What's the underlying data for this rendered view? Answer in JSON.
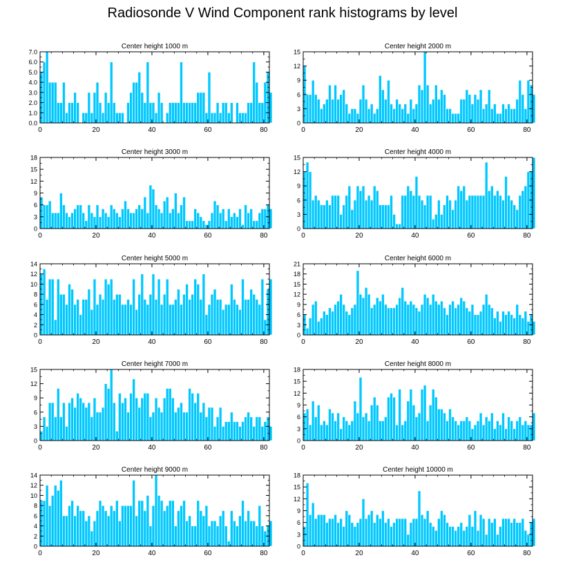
{
  "title": "Radiosonde V Wind Component rank histograms by level",
  "colors": {
    "bar": "#00c8ff",
    "bar_edge": "#ffffff",
    "axis": "#000000",
    "background": "#ffffff"
  },
  "chart_data": [
    {
      "type": "bar",
      "title": "Center height 1000 m",
      "xlim": [
        0,
        82
      ],
      "ylim": [
        0,
        7
      ],
      "xticks": [
        "0",
        "20",
        "40",
        "60",
        "80"
      ],
      "yticks": [
        "0.0",
        "1.0",
        "2.0",
        "3.0",
        "4.0",
        "5.0",
        "6.0",
        "7.0"
      ],
      "values": [
        5,
        6,
        7,
        4,
        4,
        4,
        2,
        2,
        4,
        1,
        2,
        2,
        3,
        2,
        0,
        1,
        1,
        3,
        1,
        3,
        4,
        2,
        1,
        3,
        2,
        6,
        2,
        1,
        1,
        1,
        0,
        2,
        3,
        4,
        4,
        5,
        3,
        2,
        6,
        2,
        2,
        1,
        3,
        2,
        0,
        1,
        2,
        2,
        2,
        2,
        6,
        2,
        2,
        2,
        2,
        2,
        3,
        3,
        3,
        1,
        5,
        1,
        1,
        2,
        1,
        2,
        2,
        1,
        2,
        0,
        2,
        1,
        1,
        1,
        2,
        2,
        6,
        4,
        2,
        2,
        4,
        5,
        3
      ]
    },
    {
      "type": "bar",
      "title": "Center height 2000 m",
      "xlim": [
        0,
        82
      ],
      "ylim": [
        0,
        15
      ],
      "xticks": [
        "0",
        "20",
        "40",
        "60",
        "80"
      ],
      "yticks": [
        "0",
        "3",
        "6",
        "9",
        "12",
        "15"
      ],
      "values": [
        12,
        6,
        6,
        9,
        6,
        5,
        3,
        4,
        5,
        8,
        5,
        8,
        5,
        6,
        7,
        4,
        2,
        3,
        3,
        2,
        5,
        8,
        5,
        3,
        4,
        2,
        3,
        10,
        7,
        5,
        9,
        4,
        3,
        5,
        4,
        3,
        4,
        2,
        5,
        3,
        4,
        8,
        7,
        15,
        8,
        4,
        5,
        8,
        5,
        7,
        6,
        3,
        3,
        2,
        2,
        2,
        5,
        5,
        7,
        6,
        4,
        6,
        5,
        7,
        3,
        4,
        7,
        3,
        4,
        2,
        2,
        4,
        3,
        4,
        3,
        3,
        5,
        9,
        6,
        3,
        9,
        8,
        6
      ]
    },
    {
      "type": "bar",
      "title": "Center height 3000 m",
      "xlim": [
        0,
        82
      ],
      "ylim": [
        0,
        18
      ],
      "xticks": [
        "0",
        "20",
        "40",
        "60",
        "80"
      ],
      "yticks": [
        "0",
        "3",
        "6",
        "9",
        "12",
        "15",
        "18"
      ],
      "values": [
        8,
        6,
        6,
        7,
        4,
        4,
        4,
        9,
        6,
        4,
        3,
        4,
        5,
        6,
        6,
        4,
        2,
        6,
        4,
        3,
        6,
        3,
        5,
        4,
        3,
        6,
        5,
        4,
        3,
        5,
        7,
        5,
        4,
        4,
        5,
        6,
        5,
        8,
        4,
        11,
        10,
        6,
        5,
        4,
        7,
        8,
        4,
        5,
        9,
        4,
        6,
        8,
        2,
        2,
        2,
        5,
        4,
        3,
        2,
        1,
        2,
        4,
        7,
        6,
        4,
        5,
        2,
        5,
        3,
        4,
        3,
        5,
        1,
        6,
        4,
        5,
        2,
        2,
        4,
        5,
        5,
        6,
        5
      ]
    },
    {
      "type": "bar",
      "title": "Center height 4000 m",
      "xlim": [
        0,
        82
      ],
      "ylim": [
        0,
        15
      ],
      "xticks": [
        "0",
        "20",
        "40",
        "60",
        "80"
      ],
      "yticks": [
        "0",
        "3",
        "6",
        "9",
        "12",
        "15"
      ],
      "values": [
        12,
        14,
        12,
        6,
        7,
        6,
        5,
        5,
        6,
        5,
        7,
        7,
        7,
        3,
        5,
        7,
        9,
        4,
        6,
        9,
        8,
        9,
        6,
        7,
        6,
        9,
        8,
        5,
        5,
        5,
        5,
        7,
        3,
        1,
        1,
        7,
        7,
        9,
        8,
        7,
        11,
        7,
        6,
        5,
        7,
        7,
        2,
        3,
        6,
        3,
        5,
        7,
        6,
        4,
        6,
        9,
        8,
        9,
        6,
        7,
        7,
        7,
        7,
        7,
        7,
        14,
        8,
        9,
        7,
        8,
        7,
        6,
        11,
        7,
        6,
        5,
        4,
        7,
        8,
        9,
        12,
        12,
        15
      ]
    },
    {
      "type": "bar",
      "title": "Center height 5000 m",
      "xlim": [
        0,
        82
      ],
      "ylim": [
        0,
        14
      ],
      "xticks": [
        "0",
        "20",
        "40",
        "60",
        "80"
      ],
      "yticks": [
        "0",
        "2",
        "4",
        "6",
        "8",
        "10",
        "12",
        "14"
      ],
      "values": [
        12,
        13,
        7,
        11,
        11,
        3,
        11,
        8,
        8,
        6,
        10,
        9,
        6,
        7,
        4,
        7,
        7,
        9,
        5,
        11,
        6,
        8,
        7,
        11,
        10,
        11,
        7,
        8,
        8,
        6,
        6,
        7,
        6,
        11,
        5,
        8,
        12,
        7,
        6,
        8,
        12,
        7,
        11,
        6,
        8,
        11,
        6,
        6,
        7,
        9,
        6,
        8,
        10,
        7,
        8,
        11,
        10,
        7,
        12,
        4,
        6,
        8,
        9,
        7,
        7,
        5,
        6,
        6,
        10,
        7,
        6,
        5,
        11,
        7,
        7,
        9,
        8,
        7,
        6,
        11,
        3,
        9,
        11
      ]
    },
    {
      "type": "bar",
      "title": "Center height 6000 m",
      "xlim": [
        0,
        82
      ],
      "ylim": [
        0,
        21
      ],
      "xticks": [
        "0",
        "20",
        "40",
        "60",
        "80"
      ],
      "yticks": [
        "0",
        "3",
        "6",
        "9",
        "12",
        "15",
        "18",
        "21"
      ],
      "values": [
        6,
        2,
        5,
        9,
        10,
        4,
        5,
        7,
        6,
        8,
        7,
        9,
        10,
        12,
        9,
        7,
        6,
        8,
        9,
        19,
        12,
        11,
        14,
        12,
        8,
        9,
        11,
        10,
        12,
        9,
        8,
        8,
        8,
        9,
        11,
        14,
        10,
        9,
        10,
        9,
        8,
        7,
        9,
        12,
        11,
        9,
        12,
        10,
        9,
        10,
        8,
        6,
        9,
        10,
        8,
        9,
        11,
        10,
        8,
        7,
        9,
        6,
        6,
        7,
        9,
        12,
        9,
        8,
        5,
        7,
        4,
        7,
        6,
        7,
        6,
        5,
        9,
        6,
        5,
        7,
        4,
        6,
        4
      ]
    },
    {
      "type": "bar",
      "title": "Center height 7000 m",
      "xlim": [
        0,
        82
      ],
      "ylim": [
        0,
        15
      ],
      "xticks": [
        "0",
        "20",
        "40",
        "60",
        "80"
      ],
      "yticks": [
        "0",
        "3",
        "6",
        "9",
        "12",
        "15"
      ],
      "values": [
        2,
        5,
        3,
        8,
        8,
        5,
        11,
        5,
        8,
        3,
        8,
        9,
        7,
        10,
        9,
        8,
        7,
        8,
        5,
        9,
        6,
        6,
        7,
        12,
        11,
        15,
        8,
        2,
        10,
        8,
        9,
        6,
        10,
        13,
        9,
        7,
        9,
        10,
        10,
        5,
        6,
        9,
        7,
        6,
        9,
        11,
        11,
        9,
        6,
        7,
        8,
        6,
        6,
        11,
        10,
        8,
        10,
        6,
        8,
        5,
        7,
        7,
        3,
        5,
        7,
        3,
        4,
        4,
        6,
        4,
        4,
        3,
        4,
        5,
        6,
        5,
        3,
        5,
        5,
        3,
        4,
        5,
        3
      ]
    },
    {
      "type": "bar",
      "title": "Center height 8000 m",
      "xlim": [
        0,
        82
      ],
      "ylim": [
        0,
        18
      ],
      "xticks": [
        "0",
        "20",
        "40",
        "60",
        "80"
      ],
      "yticks": [
        "0",
        "3",
        "6",
        "9",
        "12",
        "15",
        "18"
      ],
      "values": [
        7,
        8,
        4,
        10,
        6,
        9,
        4,
        5,
        4,
        8,
        7,
        5,
        7,
        3,
        6,
        5,
        4,
        5,
        10,
        7,
        16,
        6,
        7,
        5,
        9,
        11,
        9,
        5,
        5,
        6,
        11,
        12,
        11,
        4,
        13,
        4,
        5,
        10,
        13,
        9,
        6,
        7,
        13,
        14,
        5,
        9,
        13,
        11,
        8,
        8,
        7,
        5,
        8,
        6,
        5,
        4,
        5,
        5,
        6,
        5,
        3,
        4,
        5,
        7,
        4,
        6,
        5,
        7,
        3,
        5,
        4,
        7,
        3,
        6,
        5,
        3,
        5,
        6,
        4,
        5,
        4,
        4,
        7
      ]
    },
    {
      "type": "bar",
      "title": "Center height 9000 m",
      "xlim": [
        0,
        82
      ],
      "ylim": [
        0,
        14
      ],
      "xticks": [
        "0",
        "20",
        "40",
        "60",
        "80"
      ],
      "yticks": [
        "0",
        "2",
        "4",
        "6",
        "8",
        "10",
        "12",
        "14"
      ],
      "values": [
        9,
        9,
        12,
        8,
        10,
        12,
        11,
        13,
        6,
        6,
        8,
        9,
        6,
        8,
        7,
        7,
        5,
        6,
        3,
        5,
        7,
        9,
        8,
        7,
        6,
        8,
        7,
        9,
        5,
        8,
        8,
        8,
        8,
        13,
        6,
        9,
        9,
        7,
        10,
        4,
        8,
        14,
        10,
        9,
        7,
        8,
        9,
        9,
        4,
        7,
        8,
        9,
        5,
        6,
        4,
        4,
        9,
        7,
        6,
        8,
        4,
        5,
        5,
        4,
        6,
        7,
        4,
        1,
        7,
        5,
        4,
        6,
        9,
        5,
        7,
        5,
        5,
        4,
        8,
        4,
        3,
        4,
        5
      ]
    },
    {
      "type": "bar",
      "title": "Center height 10000 m",
      "xlim": [
        0,
        82
      ],
      "ylim": [
        0,
        18
      ],
      "xticks": [
        "0",
        "20",
        "40",
        "60",
        "80"
      ],
      "yticks": [
        "0",
        "3",
        "6",
        "9",
        "12",
        "15",
        "18"
      ],
      "values": [
        5,
        16,
        8,
        11,
        7,
        8,
        8,
        8,
        6,
        7,
        7,
        8,
        6,
        7,
        5,
        9,
        8,
        6,
        5,
        6,
        7,
        12,
        7,
        8,
        9,
        6,
        8,
        7,
        9,
        6,
        7,
        5,
        6,
        7,
        7,
        7,
        7,
        3,
        6,
        7,
        7,
        14,
        8,
        7,
        9,
        6,
        5,
        4,
        7,
        9,
        8,
        6,
        5,
        5,
        4,
        5,
        6,
        4,
        5,
        8,
        5,
        9,
        4,
        8,
        7,
        3,
        7,
        6,
        7,
        3,
        5,
        7,
        7,
        7,
        6,
        7,
        6,
        6,
        7,
        4,
        3,
        6,
        7
      ]
    }
  ]
}
